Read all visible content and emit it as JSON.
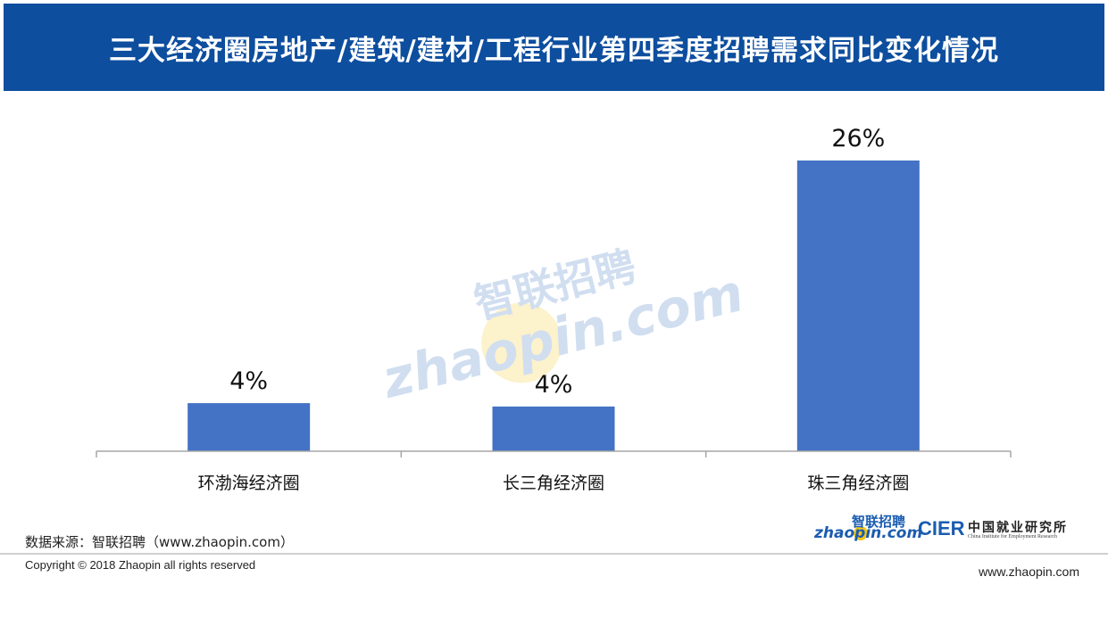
{
  "header": {
    "title": "三大经济圈房地产/建筑/建材/工程行业第四季度招聘需求同比变化情况"
  },
  "chart_data": {
    "type": "bar",
    "categories": [
      "环渤海经济圈",
      "长三角经济圈",
      "珠三角经济圈"
    ],
    "values": [
      4.3,
      4.0,
      26.0
    ],
    "data_labels": [
      "4%",
      "4%",
      "26%"
    ],
    "ylim": [
      0,
      26
    ],
    "grid": false,
    "legend": "none",
    "bar_color": "#4472c4"
  },
  "watermark": {
    "cn": "智联招聘",
    "en": "zhaopin.com"
  },
  "footer": {
    "source": "数据来源：智联招聘（www.zhaopin.com）",
    "copyright": "Copyright © 2018 Zhaopin all rights reserved",
    "site": "www.zhaopin.com",
    "logo_zhaopin_cn": "智联招聘",
    "logo_zhaopin_en": "zhaopin.com",
    "logo_cier": "CIER",
    "logo_cier_cn": "中国就业研究所",
    "logo_cier_sub": "China Institute for Employment Research"
  },
  "colors": {
    "header_bg": "#0d4e9e",
    "accent": "#4472c4",
    "brand_yellow": "#f5c518"
  }
}
